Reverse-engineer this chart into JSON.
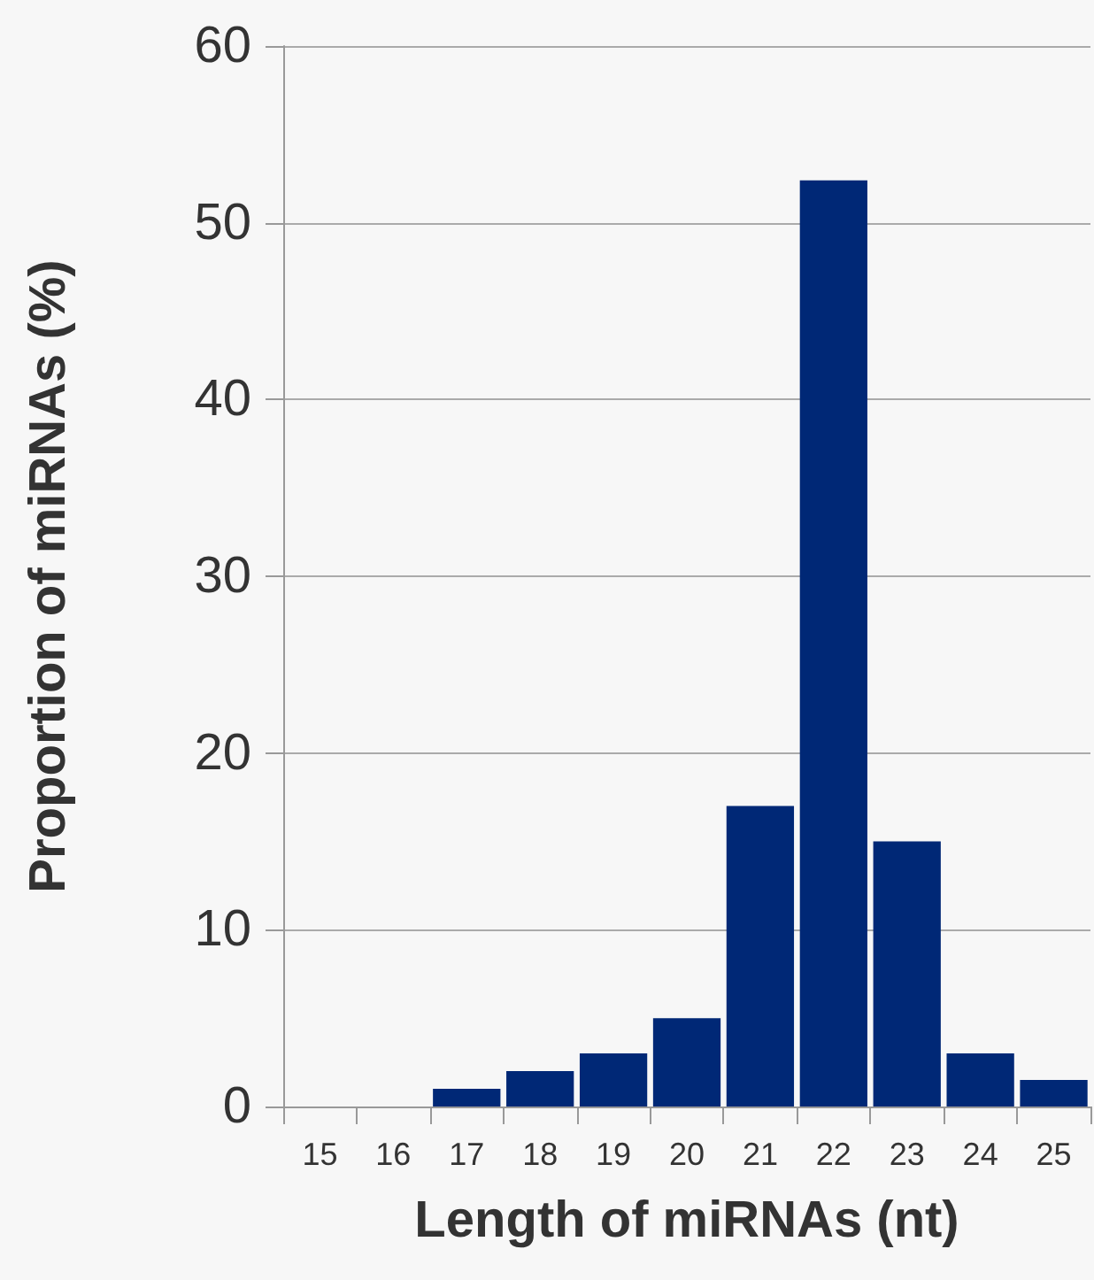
{
  "chart_data": {
    "type": "bar",
    "xlabel": "Length of miRNAs (nt)",
    "ylabel": "Proportion of miRNAs (%)",
    "categories": [
      "15",
      "16",
      "17",
      "18",
      "19",
      "20",
      "21",
      "22",
      "23",
      "24",
      "25"
    ],
    "values": [
      0,
      0,
      1.0,
      2.0,
      3.0,
      5.0,
      17.0,
      52.4,
      15.0,
      3.0,
      1.5
    ],
    "color": "#002876",
    "ylim": [
      0,
      60
    ],
    "yticks": [
      0,
      10,
      20,
      30,
      40,
      50,
      60
    ],
    "grid": "y"
  }
}
